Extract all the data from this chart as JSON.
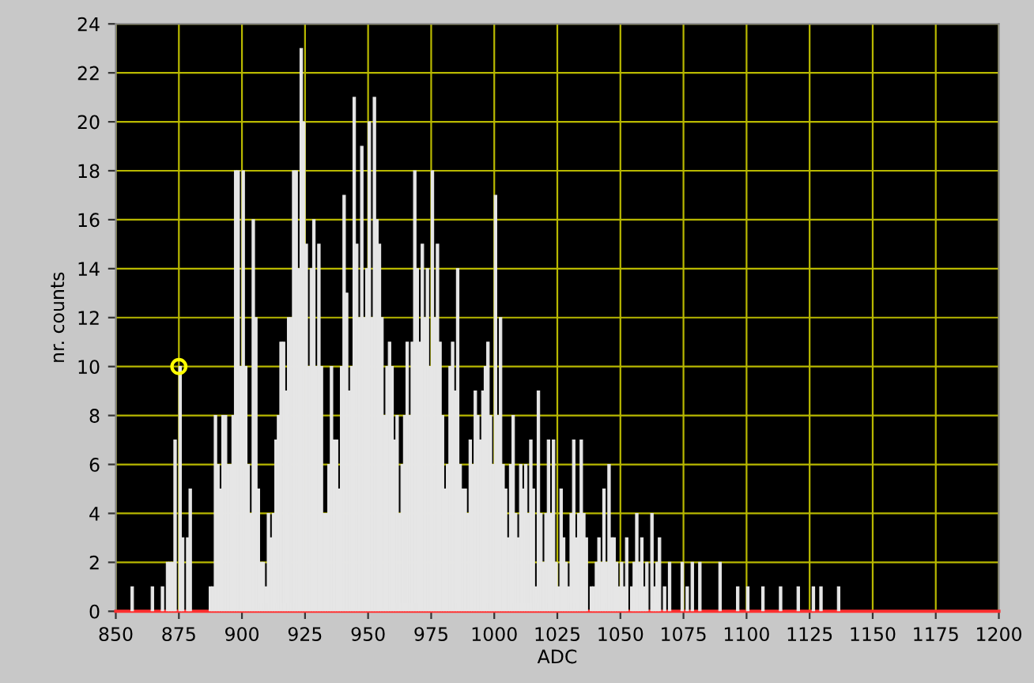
{
  "chart_data": {
    "type": "histogram",
    "xlabel": "ADC",
    "ylabel": "nr. counts",
    "bins": [
      850,
      851,
      852,
      853,
      854,
      855,
      856,
      857,
      858,
      859,
      860,
      861,
      862,
      863,
      864,
      865,
      866,
      867,
      868,
      869,
      870,
      871,
      872,
      873,
      874,
      875,
      876,
      877,
      878,
      879,
      880,
      881,
      882,
      883,
      884,
      885,
      886,
      887,
      888,
      889,
      890,
      891,
      892,
      893,
      894,
      895,
      896,
      897,
      898,
      899,
      900,
      901,
      902,
      903,
      904,
      905,
      906,
      907,
      908,
      909,
      910,
      911,
      912,
      913,
      914,
      915,
      916,
      917,
      918,
      919,
      920,
      921,
      922,
      923,
      924,
      925,
      926,
      927,
      928,
      929,
      930,
      931,
      932,
      933,
      934,
      935,
      936,
      937,
      938,
      939,
      940,
      941,
      942,
      943,
      944,
      945,
      946,
      947,
      948,
      949,
      950,
      951,
      952,
      953,
      954,
      955,
      956,
      957,
      958,
      959,
      960,
      961,
      962,
      963,
      964,
      965,
      966,
      967,
      968,
      969,
      970,
      971,
      972,
      973,
      974,
      975,
      976,
      977,
      978,
      979,
      980,
      981,
      982,
      983,
      984,
      985,
      986,
      987,
      988,
      989,
      990,
      991,
      992,
      993,
      994,
      995,
      996,
      997,
      998,
      999,
      1000,
      1001,
      1002,
      1003,
      1004,
      1005,
      1006,
      1007,
      1008,
      1009,
      1010,
      1011,
      1012,
      1013,
      1014,
      1015,
      1016,
      1017,
      1018,
      1019,
      1020,
      1021,
      1022,
      1023,
      1024,
      1025,
      1026,
      1027,
      1028,
      1029,
      1030,
      1031,
      1032,
      1033,
      1034,
      1035,
      1036,
      1037,
      1038,
      1039,
      1040,
      1041,
      1042,
      1043,
      1044,
      1045,
      1046,
      1047,
      1048,
      1049,
      1050,
      1051,
      1052,
      1053,
      1054,
      1055,
      1056,
      1057,
      1058,
      1059,
      1060,
      1061,
      1062,
      1063,
      1064,
      1065,
      1066,
      1067,
      1068,
      1069,
      1070,
      1071,
      1072,
      1073,
      1074,
      1075,
      1076,
      1077,
      1078,
      1079,
      1080,
      1081,
      1082,
      1083,
      1084,
      1085,
      1086,
      1087,
      1088,
      1089,
      1090,
      1091,
      1092,
      1093,
      1094,
      1095,
      1096,
      1097,
      1098,
      1099,
      1100,
      1101,
      1102,
      1103,
      1104,
      1105,
      1106,
      1107,
      1108,
      1109,
      1110,
      1111,
      1112,
      1113,
      1114,
      1115,
      1116,
      1117,
      1118,
      1119,
      1120,
      1121,
      1122,
      1123,
      1124,
      1125,
      1126,
      1127,
      1128,
      1129,
      1130,
      1131,
      1132,
      1133,
      1134,
      1135,
      1136,
      1137,
      1138,
      1139,
      1140
    ],
    "values": [
      0,
      0,
      0,
      0,
      0,
      0,
      1,
      0,
      0,
      0,
      0,
      0,
      0,
      0,
      1,
      0,
      0,
      0,
      1,
      0,
      2,
      2,
      2,
      7,
      0,
      10,
      3,
      0,
      3,
      5,
      0,
      0,
      0,
      0,
      0,
      0,
      0,
      1,
      1,
      8,
      6,
      5,
      8,
      8,
      6,
      6,
      8,
      18,
      18,
      10,
      18,
      10,
      6,
      4,
      16,
      12,
      5,
      2,
      2,
      1,
      4,
      3,
      4,
      7,
      8,
      11,
      11,
      9,
      12,
      12,
      18,
      18,
      14,
      23,
      20,
      15,
      10,
      14,
      16,
      10,
      15,
      10,
      4,
      4,
      6,
      10,
      7,
      7,
      5,
      10,
      17,
      13,
      9,
      10,
      21,
      15,
      12,
      19,
      12,
      14,
      20,
      12,
      21,
      16,
      15,
      12,
      8,
      10,
      11,
      10,
      7,
      8,
      4,
      6,
      8,
      11,
      8,
      11,
      18,
      14,
      11,
      15,
      12,
      14,
      10,
      18,
      12,
      15,
      11,
      8,
      5,
      6,
      10,
      11,
      9,
      14,
      6,
      5,
      5,
      4,
      7,
      6,
      9,
      8,
      7,
      9,
      10,
      11,
      8,
      6,
      17,
      8,
      12,
      6,
      5,
      3,
      6,
      8,
      4,
      3,
      6,
      5,
      6,
      4,
      7,
      5,
      1,
      9,
      4,
      2,
      4,
      7,
      4,
      7,
      2,
      1,
      5,
      3,
      2,
      1,
      4,
      7,
      3,
      4,
      7,
      4,
      3,
      0,
      1,
      1,
      2,
      3,
      2,
      5,
      2,
      6,
      3,
      3,
      2,
      1,
      2,
      1,
      3,
      0,
      1,
      2,
      4,
      2,
      3,
      1,
      2,
      0,
      4,
      1,
      2,
      3,
      0,
      1,
      0,
      2,
      0,
      0,
      0,
      0,
      2,
      0,
      1,
      0,
      2,
      0,
      0,
      2,
      0,
      0,
      0,
      0,
      0,
      0,
      0,
      2,
      0,
      0,
      0,
      0,
      0,
      0,
      1,
      0,
      0,
      0,
      1,
      0,
      0,
      0,
      0,
      0,
      1,
      0,
      0,
      0,
      0,
      0,
      0,
      1,
      0,
      0,
      0,
      0,
      0,
      0,
      1,
      0,
      0,
      0,
      0,
      0,
      1,
      0,
      0,
      1,
      0,
      0,
      0,
      0,
      0,
      0,
      1,
      0,
      0,
      0
    ],
    "color": "#e6e6e6",
    "series": [
      {
        "type": "scatter",
        "x": [
          875
        ],
        "values": [
          10
        ],
        "color": "#ffff00",
        "marker": "circle"
      }
    ],
    "xlim": [
      850,
      1200
    ],
    "xticks": [
      850,
      875,
      900,
      925,
      950,
      975,
      1000,
      1025,
      1050,
      1075,
      1100,
      1125,
      1150,
      1175,
      1200
    ],
    "ylim": [
      0,
      24
    ],
    "yticks": [
      0,
      2,
      4,
      6,
      8,
      10,
      12,
      14,
      16,
      18,
      20,
      22,
      24
    ],
    "grid": true
  }
}
